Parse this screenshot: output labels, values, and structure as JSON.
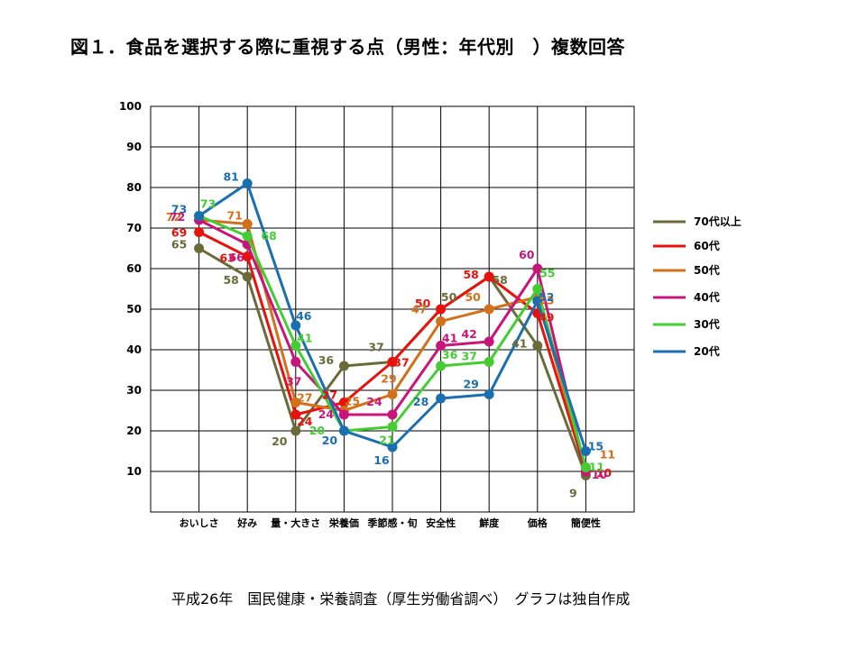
{
  "title": "図１．食品を選択する際に重視する点（男性：年代別　）複数回答",
  "footer": "平成26年　国民健康・栄養調査（厚生労働省調べ）　グラフは独自作成",
  "chart_data": {
    "type": "line",
    "categories": [
      "おいしさ",
      "好み",
      "量・大きさ",
      "栄養価",
      "季節感・旬",
      "安全性",
      "鮮度",
      "価格",
      "簡便性"
    ],
    "y_ticks": [
      "100",
      "90",
      "80",
      "70",
      "60",
      "50",
      "40",
      "30",
      "20",
      "10"
    ],
    "ylim": [
      0,
      100
    ],
    "grid": true,
    "legend_position": "right",
    "series": [
      {
        "name": "70代以上",
        "color": "#6b6b3a",
        "values": [
          65,
          58,
          20,
          36,
          37,
          50,
          58,
          41,
          9
        ]
      },
      {
        "name": "60代",
        "color": "#e8120c",
        "values": [
          69,
          63,
          24,
          27,
          37,
          50,
          58,
          49,
          10
        ]
      },
      {
        "name": "50代",
        "color": "#d2701c",
        "values": [
          72,
          71,
          27,
          25,
          29,
          47,
          50,
          53,
          11
        ]
      },
      {
        "name": "40代",
        "color": "#c8157a",
        "values": [
          72,
          66,
          37,
          24,
          24,
          41,
          42,
          60,
          10
        ]
      },
      {
        "name": "30代",
        "color": "#44cc33",
        "values": [
          73,
          68,
          41,
          20,
          21,
          36,
          37,
          55,
          11
        ]
      },
      {
        "name": "20代",
        "color": "#1a6fb0",
        "values": [
          73,
          81,
          46,
          20,
          16,
          28,
          29,
          52,
          15
        ]
      }
    ]
  }
}
